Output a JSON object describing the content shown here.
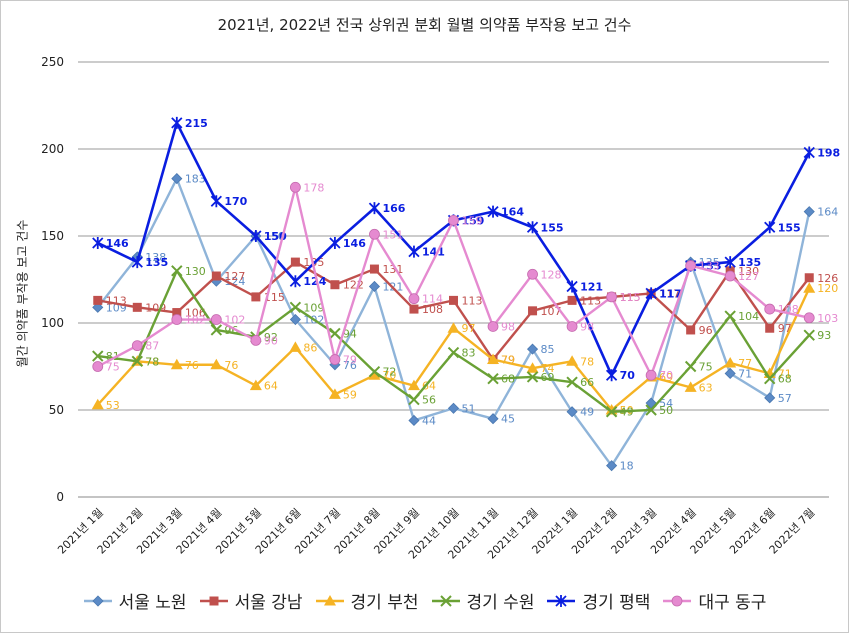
{
  "chart_data": {
    "type": "line",
    "title": "2021년, 2022년 전국 상위권 분회 월별 의약품 부작용 보고 건수",
    "ylabel": "월간 의약품 부작용 보고 건수",
    "xlabel": "",
    "ylim": [
      0,
      250
    ],
    "yticks": [
      0,
      50,
      100,
      150,
      200,
      250
    ],
    "grid": true,
    "legend_position": "bottom",
    "categories": [
      "2021년 1월",
      "2021년 2월",
      "2021년 3월",
      "2021년 4월",
      "2021년 5월",
      "2021년 6월",
      "2021년 7월",
      "2021년 8월",
      "2021년 9월",
      "2021년 10월",
      "2021년 11월",
      "2021년 12월",
      "2022년 1월",
      "2022년 2월",
      "2022년 3월",
      "2022년 4월",
      "2022년 5월",
      "2022년 6월",
      "2022년 7월"
    ],
    "series": [
      {
        "name": "서울 노원",
        "color": "#8fb4d9",
        "marker": "diamond",
        "marker_color": "#5b8ac6",
        "values": [
          109,
          138,
          183,
          124,
          150,
          102,
          76,
          121,
          44,
          51,
          45,
          85,
          49,
          18,
          54,
          135,
          71,
          57,
          164
        ]
      },
      {
        "name": "서울 강남",
        "color": "#c0504d",
        "marker": "square",
        "marker_color": "#c0504d",
        "values": [
          113,
          109,
          106,
          127,
          115,
          135,
          122,
          131,
          108,
          113,
          79,
          107,
          113,
          115,
          117,
          96,
          130,
          97,
          126
        ]
      },
      {
        "name": "경기 부천",
        "color": "#f5b324",
        "marker": "triangle",
        "marker_color": "#f5b324",
        "values": [
          53,
          78,
          76,
          76,
          64,
          86,
          59,
          70,
          64,
          97,
          79,
          74,
          78,
          50,
          69,
          63,
          77,
          71,
          120
        ]
      },
      {
        "name": "경기 수원",
        "color": "#6aa135",
        "marker": "x",
        "marker_color": "#6aa135",
        "values": [
          81,
          78,
          130,
          96,
          92,
          109,
          94,
          72,
          56,
          83,
          68,
          69,
          66,
          49,
          50,
          75,
          104,
          68,
          93
        ]
      },
      {
        "name": "경기 평택",
        "color": "#0a1ee0",
        "marker": "star",
        "marker_color": "#0a1ee0",
        "values": [
          146,
          135,
          215,
          170,
          150,
          124,
          146,
          166,
          141,
          159,
          164,
          155,
          121,
          70,
          117,
          133,
          135,
          155,
          198
        ]
      },
      {
        "name": "대구 동구",
        "color": "#e58ad0",
        "marker": "circle",
        "marker_color": "#e58ad0",
        "values": [
          75,
          87,
          102,
          102,
          90,
          178,
          79,
          151,
          114,
          159,
          98,
          128,
          98,
          115,
          70,
          133,
          127,
          108,
          103
        ]
      }
    ]
  }
}
